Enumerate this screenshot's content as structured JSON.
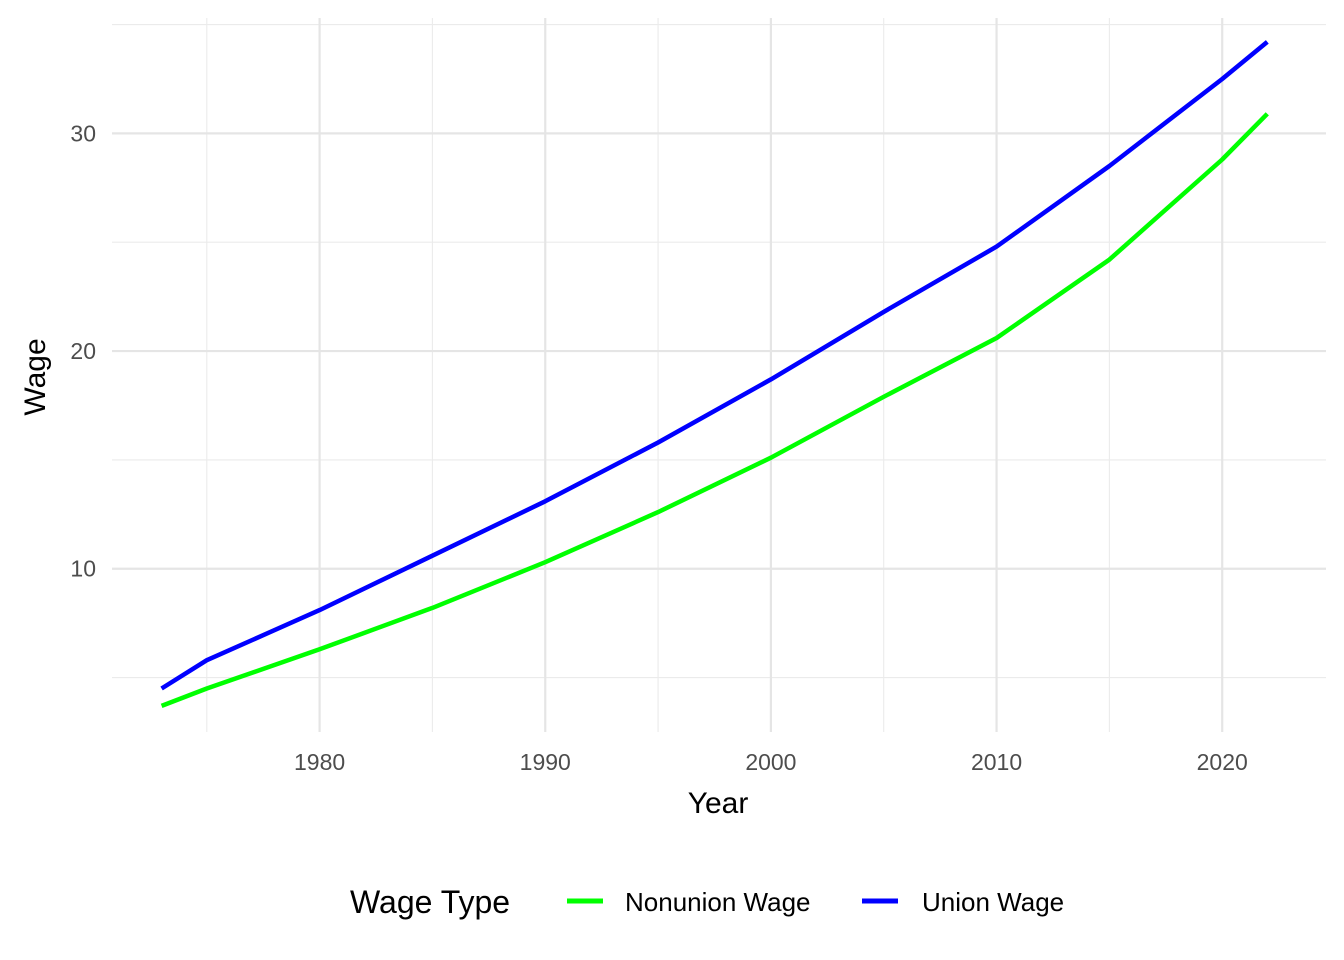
{
  "chart_data": {
    "type": "line",
    "xlabel": "Year",
    "ylabel": "Wage",
    "xlim": [
      1970.8,
      2024.6
    ],
    "ylim": [
      2.5,
      35.3
    ],
    "x_ticks_major": [
      1980,
      1990,
      2000,
      2010,
      2020
    ],
    "x_ticks_minor": [
      1975,
      1985,
      1995,
      2005,
      2015
    ],
    "y_ticks_major": [
      10,
      20,
      30
    ],
    "y_ticks_minor": [
      5,
      15,
      25,
      35
    ],
    "grid": true,
    "legend": {
      "title": "Wage Type",
      "position": "bottom"
    },
    "x": [
      1973,
      1975,
      1980,
      1985,
      1990,
      1995,
      2000,
      2005,
      2010,
      2015,
      2020,
      2022
    ],
    "series": [
      {
        "name": "Nonunion Wage",
        "color": "#00ff00",
        "values": [
          3.7,
          4.5,
          6.3,
          8.2,
          10.3,
          12.6,
          15.1,
          17.9,
          20.6,
          24.2,
          28.8,
          30.9
        ]
      },
      {
        "name": "Union Wage",
        "color": "#0000ff",
        "values": [
          4.5,
          5.8,
          8.1,
          10.6,
          13.1,
          15.8,
          18.7,
          21.8,
          24.8,
          28.5,
          32.5,
          34.2
        ]
      }
    ]
  }
}
